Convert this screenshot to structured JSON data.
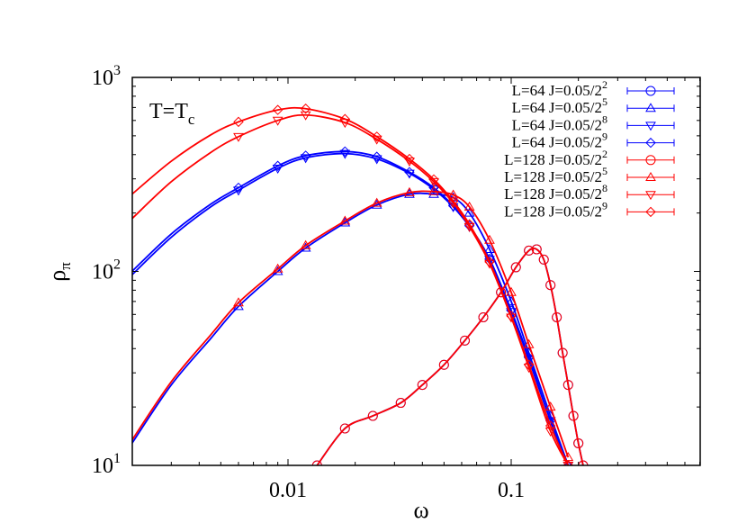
{
  "chart_data": {
    "type": "line",
    "title": "",
    "annotation": "T=T_c",
    "xlabel": "ω",
    "ylabel": "ρ_π",
    "xscale": "log",
    "yscale": "log",
    "xlim": [
      0.002,
      0.7
    ],
    "ylim": [
      10,
      1000
    ],
    "x_ticks": [
      {
        "value": 0.01,
        "label": "0.01"
      },
      {
        "value": 0.1,
        "label": "0.1"
      }
    ],
    "y_ticks": [
      {
        "value": 10,
        "label": "10",
        "exp": "1"
      },
      {
        "value": 100,
        "label": "10",
        "exp": "2"
      },
      {
        "value": 1000,
        "label": "10",
        "exp": "3"
      }
    ],
    "grid": false,
    "legend_position": "top-right",
    "colors": {
      "L64": "#0000ff",
      "L128": "#ff0000"
    },
    "series": [
      {
        "name": "L=64 J=0.05/2^2",
        "label": "L=64 J=0.05/2",
        "exp": "2",
        "color": "#0000ff",
        "marker": "circle",
        "x": [
          0.0135,
          0.018,
          0.024,
          0.032,
          0.04,
          0.05,
          0.062,
          0.075,
          0.09,
          0.105,
          0.12,
          0.13,
          0.14,
          0.15,
          0.16,
          0.17,
          0.18,
          0.19,
          0.2,
          0.21
        ],
        "y": [
          10,
          15.5,
          18,
          21,
          26,
          33,
          44,
          58,
          78,
          105,
          128,
          130,
          115,
          85,
          58,
          38,
          26,
          18,
          13,
          10
        ]
      },
      {
        "name": "L=64 J=0.05/2^5",
        "label": "L=64 J=0.05/2",
        "exp": "5",
        "color": "#0000ff",
        "marker": "triangle-up",
        "x": [
          0.002,
          0.003,
          0.0045,
          0.006,
          0.009,
          0.012,
          0.018,
          0.025,
          0.035,
          0.045,
          0.055,
          0.065,
          0.08,
          0.1,
          0.12,
          0.15,
          0.18
        ],
        "y": [
          13,
          26,
          45,
          66,
          100,
          132,
          178,
          220,
          250,
          250,
          240,
          200,
          130,
          70,
          38,
          18,
          10
        ]
      },
      {
        "name": "L=64 J=0.05/2^8",
        "label": "L=64 J=0.05/2",
        "exp": "8",
        "color": "#0000ff",
        "marker": "triangle-down",
        "x": [
          0.002,
          0.003,
          0.0045,
          0.006,
          0.009,
          0.012,
          0.018,
          0.025,
          0.035,
          0.045,
          0.055,
          0.065,
          0.08,
          0.1,
          0.12,
          0.15,
          0.18
        ],
        "y": [
          96,
          150,
          215,
          262,
          340,
          385,
          405,
          380,
          320,
          265,
          215,
          170,
          115,
          62,
          35,
          17,
          10
        ]
      },
      {
        "name": "L=64 J=0.05/2^9",
        "label": "L=64 J=0.05/2",
        "exp": "9",
        "color": "#0000ff",
        "marker": "diamond",
        "x": [
          0.002,
          0.003,
          0.0045,
          0.006,
          0.009,
          0.012,
          0.018,
          0.025,
          0.035,
          0.045,
          0.055,
          0.065,
          0.08,
          0.1,
          0.12,
          0.15,
          0.18
        ],
        "y": [
          100,
          156,
          222,
          270,
          350,
          395,
          415,
          390,
          325,
          270,
          218,
          172,
          116,
          63,
          36,
          17,
          10
        ]
      },
      {
        "name": "L=128 J=0.05/2^2",
        "label": "L=128 J=0.05/2",
        "exp": "2",
        "color": "#ff0000",
        "marker": "circle",
        "x": [
          0.0135,
          0.018,
          0.024,
          0.032,
          0.04,
          0.05,
          0.062,
          0.075,
          0.09,
          0.105,
          0.12,
          0.13,
          0.14,
          0.15,
          0.16,
          0.17,
          0.18,
          0.19,
          0.2,
          0.21
        ],
        "y": [
          10,
          15.5,
          18,
          21,
          26,
          33,
          44,
          58,
          78,
          105,
          128,
          130,
          115,
          85,
          58,
          38,
          26,
          18,
          13,
          10
        ]
      },
      {
        "name": "L=128 J=0.05/2^5",
        "label": "L=128 J=0.05/2",
        "exp": "5",
        "color": "#ff0000",
        "marker": "triangle-up",
        "x": [
          0.002,
          0.003,
          0.0045,
          0.006,
          0.009,
          0.012,
          0.018,
          0.025,
          0.035,
          0.045,
          0.055,
          0.065,
          0.08,
          0.1,
          0.12,
          0.15,
          0.18
        ],
        "y": [
          13.5,
          27,
          47,
          69,
          103,
          136,
          182,
          225,
          255,
          258,
          248,
          215,
          145,
          78,
          42,
          20,
          11
        ]
      },
      {
        "name": "L=128 J=0.05/2^8",
        "label": "L=128 J=0.05/2",
        "exp": "8",
        "color": "#ff0000",
        "marker": "triangle-down",
        "x": [
          0.002,
          0.003,
          0.0045,
          0.006,
          0.009,
          0.012,
          0.018,
          0.025,
          0.035,
          0.045,
          0.055,
          0.065,
          0.08,
          0.1,
          0.12,
          0.15,
          0.18
        ],
        "y": [
          187,
          290,
          410,
          495,
          600,
          640,
          585,
          480,
          370,
          290,
          225,
          170,
          110,
          58,
          32,
          15,
          10
        ]
      },
      {
        "name": "L=128 J=0.05/2^9",
        "label": "L=128 J=0.05/2",
        "exp": "9",
        "color": "#ff0000",
        "marker": "diamond",
        "x": [
          0.002,
          0.003,
          0.0045,
          0.006,
          0.009,
          0.012,
          0.018,
          0.025,
          0.035,
          0.045,
          0.055,
          0.065,
          0.08,
          0.1,
          0.12,
          0.15,
          0.18
        ],
        "y": [
          250,
          370,
          505,
          590,
          680,
          690,
          610,
          495,
          380,
          298,
          230,
          175,
          112,
          59,
          33,
          16,
          10
        ]
      }
    ]
  }
}
